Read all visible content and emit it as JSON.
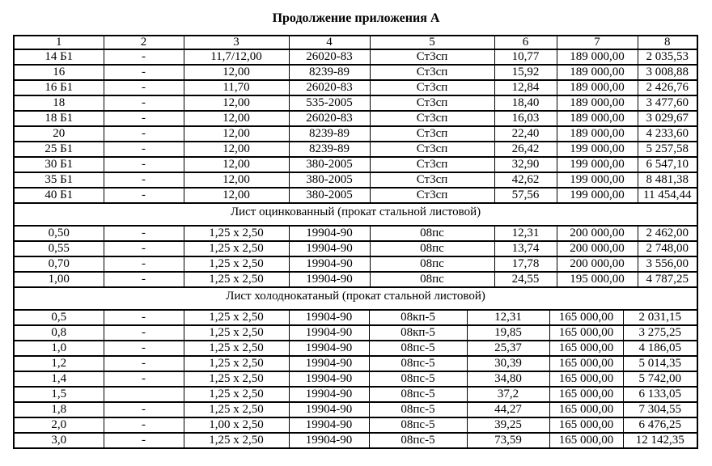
{
  "page_title": "Продолжение приложения А",
  "table": {
    "columns": [
      "1",
      "2",
      "3",
      "4",
      "5",
      "6",
      "7",
      "8"
    ],
    "sections": [
      {
        "header": null,
        "rows": [
          [
            "14 Б1",
            "-",
            "11,7/12,00",
            "26020-83",
            "Ст3сп",
            "10,77",
            "189 000,00",
            "2 035,53"
          ],
          [
            "16",
            "-",
            "12,00",
            "8239-89",
            "Ст3сп",
            "15,92",
            "189 000,00",
            "3 008,88"
          ],
          [
            "16 Б1",
            "-",
            "11,70",
            "26020-83",
            "Ст3сп",
            "12,84",
            "189 000,00",
            "2 426,76"
          ],
          [
            "18",
            "-",
            "12,00",
            "535-2005",
            "Ст3сп",
            "18,40",
            "189 000,00",
            "3 477,60"
          ],
          [
            "18 Б1",
            "-",
            "12,00",
            "26020-83",
            "Ст3сп",
            "16,03",
            "189 000,00",
            "3 029,67"
          ],
          [
            "20",
            "-",
            "12,00",
            "8239-89",
            "Ст3сп",
            "22,40",
            "189 000,00",
            "4 233,60"
          ],
          [
            "25 Б1",
            "-",
            "12,00",
            "8239-89",
            "Ст3сп",
            "26,42",
            "199 000,00",
            "5 257,58"
          ],
          [
            "30 Б1",
            "-",
            "12,00",
            "380-2005",
            "Ст3сп",
            "32,90",
            "199 000,00",
            "6 547,10"
          ],
          [
            "35 Б1",
            "-",
            "12,00",
            "380-2005",
            "Ст3сп",
            "42,62",
            "199 000,00",
            "8 481,38"
          ],
          [
            "40 Б1",
            "-",
            "12,00",
            "380-2005",
            "Ст3сп",
            "57,56",
            "199 000,00",
            "11 454,44"
          ]
        ]
      },
      {
        "header": "Лист оцинкованный (прокат стальной листовой)",
        "rows": [
          [
            "0,50",
            "-",
            "1,25 x 2,50",
            "19904-90",
            "08пс",
            "12,31",
            "200 000,00",
            "2 462,00"
          ],
          [
            "0,55",
            "-",
            "1,25 x 2,50",
            "19904-90",
            "08пс",
            "13,74",
            "200 000,00",
            "2 748,00"
          ],
          [
            "0,70",
            "-",
            "1,25 x 2,50",
            "19904-90",
            "08пс",
            "17,78",
            "200 000,00",
            "3 556,00"
          ],
          [
            "1,00",
            "-",
            "1,25 x 2,50",
            "19904-90",
            "08пс",
            "24,55",
            "195 000,00",
            "4 787,25"
          ]
        ]
      },
      {
        "header": "Лист холоднокатаный (прокат стальной листовой)",
        "rows": [
          [
            "0,5",
            "-",
            "1,25 x 2,50",
            "19904-90",
            "08кп-5",
            "12,31",
            "165 000,00",
            "2 031,15"
          ],
          [
            "0,8",
            "-",
            "1,25 x 2,50",
            "19904-90",
            "08кп-5",
            "19,85",
            "165 000,00",
            "3 275,25"
          ],
          [
            "1,0",
            "-",
            "1,25 x 2,50",
            "19904-90",
            "08пс-5",
            "25,37",
            "165 000,00",
            "4 186,05"
          ],
          [
            "1,2",
            "-",
            "1,25 x 2,50",
            "19904-90",
            "08пс-5",
            "30,39",
            "165 000,00",
            "5 014,35"
          ],
          [
            "1,4",
            "-",
            "1,25 x 2,50",
            "19904-90",
            "08пс-5",
            "34,80",
            "165 000,00",
            "5 742,00"
          ],
          [
            "1,5",
            "",
            "1,25 x 2,50",
            "19904-90",
            "08пс-5",
            "37,2",
            "165 000,00",
            "6 133,05"
          ],
          [
            "1,8",
            "-",
            "1,25 x 2,50",
            "19904-90",
            "08пс-5",
            "44,27",
            "165 000,00",
            "7 304,55"
          ],
          [
            "2,0",
            "-",
            "1,00 x 2,50",
            "19904-90",
            "08пс-5",
            "39,25",
            "165 000,00",
            "6 476,25"
          ],
          [
            "3,0",
            "-",
            "1,25 x 2,50",
            "19904-90",
            "08пс-5",
            "73,59",
            "165 000,00",
            "12 142,35"
          ]
        ]
      }
    ]
  }
}
